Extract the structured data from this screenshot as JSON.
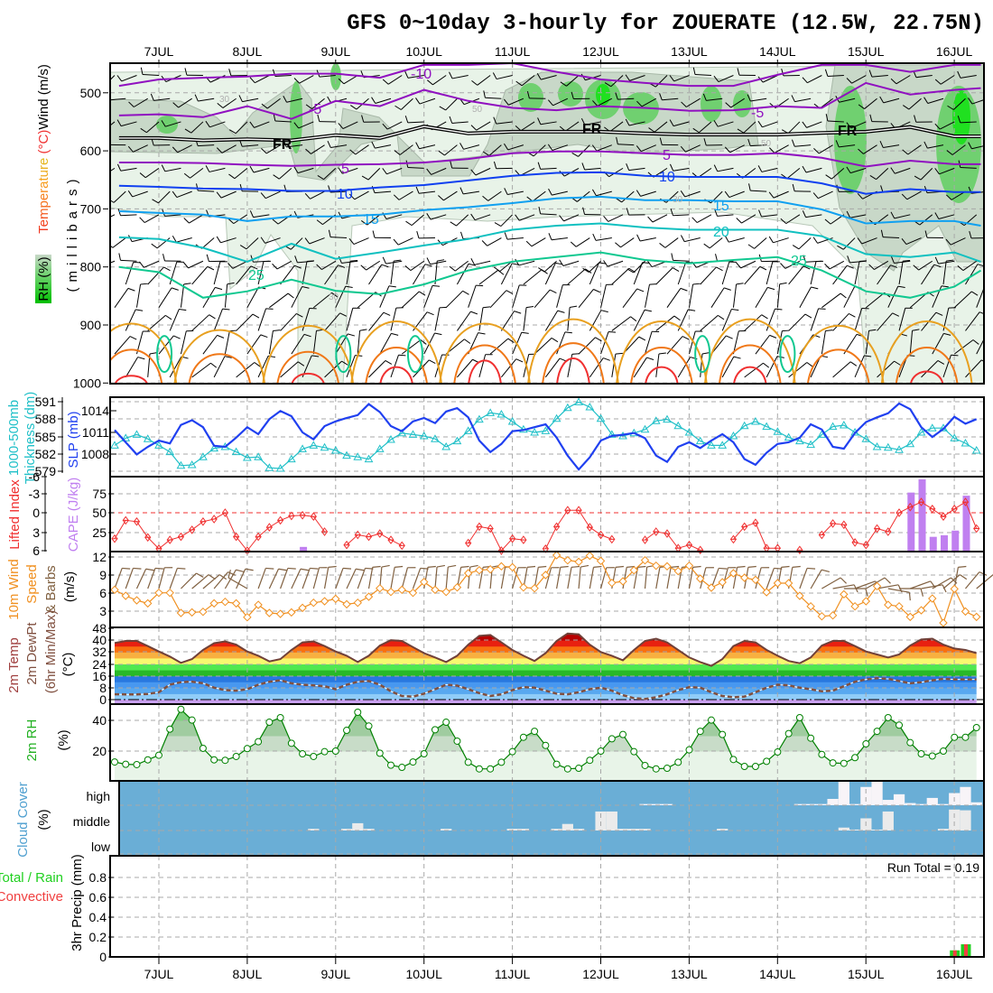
{
  "title": "GFS 0~10day 3-hourly for ZOUERATE (12.5W, 22.75N)",
  "dates": [
    "7JUL",
    "8JUL",
    "9JUL",
    "10JUL",
    "11JUL",
    "12JUL",
    "13JUL",
    "14JUL",
    "15JUL",
    "16JUL"
  ],
  "labels": {
    "rh_pct": "RH (%)",
    "temperature": "Temperature",
    "deg_c": " (°C)",
    "wind_ms": "Wind (m/s)",
    "millibars": "(millibars)",
    "thickness_1": "1000-500mb",
    "thickness_2": "Thickness (dm)",
    "slp": "SLP (mb)",
    "lifted_index": "Lifted Index",
    "cape": "CAPE (J/kg)",
    "wind10_1": "10m Wind",
    "wind10_2": "Speed",
    "wind10_3": "& Barbs",
    "wind10_4": "(m/s)",
    "temp2m_1": "2m Temp",
    "temp2m_2": "2m DewPt",
    "temp2m_3": "(6hr Min/Max)",
    "temp2m_4": "(°C)",
    "rh2m_1": "2m RH",
    "rh2m_2": "(%)",
    "cloud_1": "Cloud Cover",
    "cloud_2": "(%)",
    "cloud_high": "high",
    "cloud_middle": "middle",
    "cloud_low": "low",
    "precip_total": "Total / Rain",
    "precip_conv": "Convective",
    "precip_axis": "3hr Precip (mm)",
    "run_total": "Run Total = 0.19"
  },
  "ticks": {
    "pressure": [
      "500",
      "600",
      "700",
      "800",
      "900",
      "1000"
    ],
    "thickness": [
      "591",
      "588",
      "585",
      "582",
      "579"
    ],
    "slp": [
      "1014",
      "1011",
      "1008"
    ],
    "li": [
      "-6",
      "-3",
      "0",
      "3",
      "6"
    ],
    "cape": [
      "75",
      "50",
      "25"
    ],
    "wind": [
      "12",
      "9",
      "6",
      "3"
    ],
    "temp": [
      "48",
      "40",
      "32",
      "24",
      "16",
      "8",
      "0"
    ],
    "rh": [
      "40",
      "20"
    ],
    "precip": [
      "0.8",
      "0.6",
      "0.4",
      "0.2",
      "0"
    ]
  },
  "colors": {
    "thickness": "#2040f0",
    "slp": "#20c0c8",
    "li": "#f03030",
    "cape": "#c080f0",
    "wind_speed": "#f09020",
    "barbs": "#806040",
    "temp_line": "#704038",
    "rh_line": "#008000",
    "cloud_bg": "#6aaed6",
    "precip_rain": "#20d020",
    "precip_conv": "#f04040"
  },
  "chart_data": {
    "type": "meteogram",
    "time_step_hours": 3,
    "vertical_cross_section": {
      "ylabel": "millibars",
      "ylim": [
        449,
        1000
      ],
      "day_nodes": [
        6.55,
        7,
        7.5,
        8,
        8.5,
        9,
        9.5,
        10,
        10.5,
        11,
        11.5,
        12,
        12.5,
        13,
        13.5,
        14,
        14.5,
        15,
        15.5,
        16,
        16.3
      ],
      "isotherms": [
        {
          "label": "-10",
          "color": "#9010c0",
          "p": [
            488,
            477,
            474,
            472,
            467,
            467,
            474,
            452,
            452,
            449,
            464,
            477,
            483,
            488,
            488,
            469,
            452,
            452,
            464,
            452,
            452
          ]
        },
        {
          "label": "-5",
          "color": "#9010c0",
          "p": [
            539,
            537,
            542,
            523,
            545,
            514,
            523,
            495,
            514,
            526,
            530,
            523,
            526,
            531,
            530,
            523,
            526,
            483,
            503,
            495,
            492
          ]
        },
        {
          "label": "FR",
          "color": "#000000",
          "p": [
            578,
            578,
            582,
            580,
            582,
            573,
            578,
            558,
            570,
            567,
            567,
            567,
            570,
            572,
            572,
            572,
            569,
            567,
            559,
            575,
            575
          ]
        },
        {
          "label": "5",
          "color": "#9010c0",
          "p": [
            620,
            620,
            621,
            624,
            626,
            624,
            623,
            620,
            614,
            604,
            601,
            601,
            604,
            607,
            607,
            604,
            612,
            627,
            617,
            623,
            623
          ]
        },
        {
          "label": "10",
          "color": "#1040f0",
          "p": [
            660,
            662,
            665,
            666,
            669,
            669,
            663,
            659,
            651,
            643,
            638,
            637,
            643,
            645,
            645,
            645,
            656,
            674,
            666,
            671,
            671
          ]
        },
        {
          "label": "15",
          "color": "#10a0f0",
          "p": [
            704,
            707,
            710,
            721,
            713,
            713,
            710,
            702,
            697,
            690,
            682,
            679,
            685,
            685,
            687,
            687,
            701,
            725,
            721,
            721,
            729
          ]
        },
        {
          "label": "20",
          "color": "#10c0c0",
          "p": [
            749,
            752,
            767,
            791,
            760,
            786,
            775,
            763,
            752,
            736,
            729,
            725,
            732,
            736,
            736,
            736,
            747,
            778,
            783,
            775,
            791
          ]
        },
        {
          "label": "25",
          "color": "#10c890",
          "p": [
            800,
            809,
            853,
            842,
            822,
            841,
            847,
            830,
            806,
            791,
            783,
            775,
            788,
            794,
            788,
            783,
            806,
            842,
            853,
            834,
            806
          ]
        }
      ],
      "contour_labels": [
        "-10",
        "-5",
        "-5",
        "FR",
        "FR",
        "FR",
        "5",
        "5",
        "10",
        "10",
        "15",
        "15",
        "20",
        "25",
        "25"
      ],
      "rh_labels": [
        "30",
        "50",
        "30",
        "50",
        "30"
      ],
      "lower_lobes": {
        "30": [
          875,
          890,
          880,
          870,
          875,
          865,
          870,
          865,
          880,
          870
        ],
        "35": [
          935,
          945,
          940,
          930,
          925,
          920,
          930,
          925,
          935,
          930
        ],
        "40": [
          995,
          null,
          990,
          975,
          960,
          955,
          975,
          975,
          null,
          985
        ]
      },
      "night_25_loops_step": [
        4.5,
        20.7,
        27.2,
        53.2,
        60.9
      ],
      "wind_dir_upper_deg": 250,
      "wind_dir_lower_deg": 30
    },
    "thickness_dm": {
      "ylim": [
        579,
        591
      ],
      "values": [
        586.1,
        584.0,
        581.9,
        583.2,
        584.3,
        583.8,
        587.0,
        587.8,
        586.6,
        583.4,
        583.2,
        584.8,
        586.6,
        585.4,
        588.0,
        589.4,
        588.5,
        585.7,
        584.5,
        586.8,
        587.6,
        588.2,
        588.7,
        590.6,
        589.2,
        586.8,
        585.9,
        587.6,
        588.2,
        587.3,
        589.3,
        589.9,
        588.3,
        584.3,
        582.3,
        583.7,
        585.9,
        586.1,
        586.6,
        587.1,
        584.8,
        581.7,
        579.3,
        581.4,
        584.3,
        585.1,
        585.3,
        585.6,
        584.7,
        581.7,
        580.6,
        583.2,
        584.0,
        583.0,
        584.3,
        585.4,
        584.0,
        581.1,
        580.1,
        582.2,
        583.7,
        584.0,
        584.8,
        587.1,
        586.2,
        583.2,
        582.9,
        585.6,
        587.5,
        588.3,
        589.0,
        590.7,
        589.7,
        586.6,
        584.9,
        586.3,
        588.4,
        587.2,
        588.0
      ]
    },
    "slp_mb": {
      "values": [
        1009.2,
        1010.2,
        1010.7,
        1010.1,
        1009.2,
        1008.3,
        1006.4,
        1006.5,
        1007.6,
        1008.8,
        1009.0,
        1008.3,
        1007.5,
        1007.6,
        1006.1,
        1006.0,
        1007.3,
        1008.7,
        1009.2,
        1008.9,
        1008.5,
        1007.8,
        1007.6,
        1007.3,
        1008.7,
        1010.0,
        1010.9,
        1010.7,
        1010.5,
        1010.1,
        1009.0,
        1009.8,
        1011.2,
        1012.8,
        1013.7,
        1013.5,
        1012.5,
        1011.4,
        1011.0,
        1011.2,
        1012.9,
        1014.4,
        1015.2,
        1014.5,
        1012.9,
        1010.7,
        1010.5,
        1010.9,
        1011.4,
        1012.6,
        1012.8,
        1011.9,
        1011.0,
        1009.8,
        1009.2,
        1009.2,
        1010.5,
        1011.9,
        1012.5,
        1011.8,
        1011.1,
        1010.3,
        1009.8,
        1009.3,
        1010.7,
        1011.8,
        1012.0,
        1011.0,
        1010.1,
        1009.0,
        1008.9,
        1008.6,
        1009.4,
        1011.0,
        1011.6,
        1011.6,
        1010.2,
        1009.5,
        1008.5
      ]
    },
    "lifted_index": {
      "ylim": [
        -6,
        6
      ],
      "values": [
        4.1,
        1.2,
        1.4,
        3.9,
        5.7,
        4.3,
        3.8,
        2.7,
        1.4,
        1.0,
        0.0,
        3.8,
        6,
        3.8,
        2.3,
        1.2,
        0.5,
        0.4,
        0.6,
        3.0,
        null,
        5.1,
        3.5,
        3.8,
        3.3,
        4.3,
        5.2,
        null,
        null,
        null,
        null,
        null,
        4.8,
        2.2,
        2.5,
        6,
        4.1,
        4.3,
        null,
        5.7,
        2.2,
        -0.4,
        -0.4,
        2.3,
        3.5,
        4.2,
        null,
        null,
        4.3,
        3.0,
        3.3,
        5.6,
        5.1,
        5.9,
        null,
        null,
        4.2,
        2.2,
        1.6,
        5.6,
        5.6,
        null,
        5.9,
        null,
        3.5,
        1.7,
        1.9,
        4.7,
        5.1,
        2.5,
        3.0,
        0.0,
        -0.9,
        -1.7,
        -0.6,
        0.6,
        -0.6,
        -1.7,
        2.5
      ]
    },
    "cape_jkg": {
      "nonzero_steps": [
        [
          17,
          6
        ],
        [
          72,
          76
        ],
        [
          73,
          93
        ],
        [
          74,
          19
        ],
        [
          75,
          21
        ],
        [
          76,
          27
        ],
        [
          77,
          72
        ]
      ]
    },
    "wind10m_speed_ms": {
      "ylim": [
        0,
        12
      ],
      "values": [
        6.55,
        5.55,
        4.8,
        4.3,
        6.05,
        6.05,
        2.7,
        2.8,
        2.9,
        4.3,
        4.55,
        4.3,
        2.0,
        4.05,
        2.7,
        2.55,
        2.8,
        3.55,
        4.4,
        4.65,
        5.05,
        4.15,
        4.4,
        5.4,
        6.8,
        6.2,
        6.55,
        6.05,
        7.85,
        6.55,
        6.2,
        6.95,
        9.3,
        9.8,
        9.95,
        10.45,
        10.3,
        6.95,
        6.8,
        9.0,
        12.3,
        11.45,
        11.2,
        12.2,
        11.35,
        7.7,
        7.95,
        9.8,
        11.45,
        10.55,
        10.45,
        9.65,
        10.55,
        8.4,
        6.9,
        7.8,
        9.3,
        8.55,
        8.2,
        6.15,
        7.65,
        7.65,
        5.55,
        3.8,
        2.15,
        2.3,
        5.8,
        3.8,
        4.65,
        7.15,
        4.05,
        3.8,
        2.05,
        3.15,
        5.1,
        1.05,
        6.7,
        2.95,
        2.05
      ]
    },
    "wind10m_dir_deg": [
      20,
      20,
      25,
      20,
      15,
      20,
      45,
      50,
      50,
      40,
      30,
      25,
      300,
      20,
      25,
      20,
      25,
      20,
      15,
      10,
      20,
      25,
      20,
      10,
      5,
      10,
      15,
      20,
      10,
      5,
      5,
      10,
      5,
      10,
      5,
      10,
      15,
      10,
      10,
      15,
      10,
      10,
      5,
      10,
      15,
      10,
      10,
      10,
      5,
      10,
      10,
      10,
      10,
      15,
      20,
      15,
      10,
      10,
      15,
      20,
      10,
      10,
      20,
      30,
      60,
      80,
      90,
      70,
      60,
      80,
      100,
      90,
      70,
      80,
      60,
      50,
      10,
      40,
      50
    ],
    "temp2m_c": {
      "ylim": [
        0,
        48
      ],
      "values": [
        38.1,
        39.5,
        39.5,
        36,
        32.4,
        29,
        24.7,
        27.3,
        33.4,
        38,
        39.2,
        37,
        32.4,
        29.5,
        25.7,
        27.3,
        33.4,
        38.5,
        39.2,
        36,
        32.4,
        29.5,
        25.3,
        29.5,
        36.4,
        40,
        39.5,
        35.3,
        31.3,
        28.4,
        25.3,
        29.5,
        37,
        42.9,
        43.5,
        38.5,
        33.4,
        29.5,
        26,
        31.3,
        39.5,
        44.5,
        44,
        37,
        32,
        29.5,
        26.5,
        33.4,
        39.5,
        41,
        38.5,
        33.4,
        28.4,
        25.3,
        22.7,
        27.3,
        36,
        39.5,
        38.5,
        33.4,
        29.5,
        26,
        24.5,
        28.4,
        36.4,
        39.5,
        39.5,
        36,
        32.4,
        30.4,
        28.4,
        30.4,
        36.4,
        40.5,
        41,
        37,
        34.4,
        33.4,
        31.3
      ]
    },
    "dewpt2m_c": {
      "values": [
        3.6,
        3.5,
        3.5,
        3.8,
        5,
        10.1,
        11.7,
        12.1,
        11,
        8,
        6.4,
        6,
        7,
        10,
        12,
        13,
        11,
        10,
        9.6,
        9,
        7,
        10,
        12,
        12.5,
        10,
        5.6,
        2.4,
        2,
        4,
        7,
        10,
        9.4,
        7,
        4.4,
        2.4,
        3.6,
        6.4,
        8.4,
        8,
        6,
        4,
        3.6,
        5,
        7,
        8,
        6,
        3,
        1,
        0.4,
        1.6,
        3.6,
        6.4,
        8.4,
        8,
        5,
        2.4,
        1.6,
        2,
        5,
        8,
        10,
        9.6,
        8,
        7,
        5.6,
        6,
        9,
        12,
        13.6,
        14.4,
        14,
        12.5,
        11,
        11.7,
        13,
        14,
        13.6,
        13.6,
        13.6
      ]
    },
    "rh2m_pct": {
      "values": [
        12.9,
        11.4,
        11.2,
        14.3,
        17.3,
        34.3,
        47.2,
        40.2,
        21.8,
        14.3,
        14,
        16.5,
        21.6,
        26.1,
        38.8,
        41.8,
        25.1,
        18.2,
        16.5,
        19.6,
        20,
        33.5,
        45.3,
        36.3,
        18.6,
        10.8,
        9.4,
        12.9,
        18.2,
        33.9,
        38.8,
        26.5,
        12.7,
        8.4,
        8.4,
        12.7,
        19.6,
        29,
        32.9,
        23.7,
        11.4,
        8.4,
        8.8,
        14,
        20,
        28,
        30.8,
        19.6,
        10.6,
        8.4,
        8.8,
        12.7,
        20.8,
        32.9,
        40.2,
        30.8,
        14.5,
        10,
        10,
        13.3,
        19.4,
        31.4,
        41.8,
        28.4,
        17.8,
        12.3,
        12,
        15.7,
        24.7,
        32.9,
        41.8,
        36.9,
        25.5,
        18.2,
        16.8,
        20,
        29,
        29,
        35.3
      ]
    },
    "cloud_cover_pct": {
      "high": [
        [
          48,
          5
        ],
        [
          49,
          5
        ],
        [
          50,
          5
        ],
        [
          62,
          5
        ],
        [
          63,
          5
        ],
        [
          64,
          5
        ],
        [
          65,
          26
        ],
        [
          66,
          96
        ],
        [
          67,
          5
        ],
        [
          68,
          75
        ],
        [
          69,
          96
        ],
        [
          70,
          22
        ],
        [
          71,
          45
        ],
        [
          72,
          9
        ],
        [
          73,
          5
        ],
        [
          74,
          30
        ],
        [
          75,
          5
        ],
        [
          76,
          50
        ],
        [
          77,
          75
        ],
        [
          78,
          12
        ]
      ],
      "middle": [
        [
          18,
          7
        ],
        [
          21,
          7
        ],
        [
          22,
          30
        ],
        [
          23,
          7
        ],
        [
          30,
          7
        ],
        [
          36,
          7
        ],
        [
          37,
          7
        ],
        [
          40,
          7
        ],
        [
          41,
          27
        ],
        [
          42,
          7
        ],
        [
          44,
          78
        ],
        [
          45,
          78
        ],
        [
          46,
          7
        ],
        [
          47,
          7
        ],
        [
          48,
          7
        ],
        [
          55,
          7
        ],
        [
          66,
          12
        ],
        [
          67,
          4
        ],
        [
          68,
          50
        ],
        [
          69,
          4
        ],
        [
          70,
          78
        ],
        [
          75,
          7
        ],
        [
          76,
          86
        ],
        [
          77,
          83
        ]
      ],
      "low": []
    },
    "precip_3hr_mm": {
      "ylim": [
        0,
        0.9
      ],
      "total": [
        [
          76,
          0.066
        ],
        [
          77,
          0.127
        ]
      ],
      "convective": [
        [
          76,
          0.066
        ],
        [
          77,
          0.127
        ]
      ],
      "run_total": 0.19
    }
  }
}
